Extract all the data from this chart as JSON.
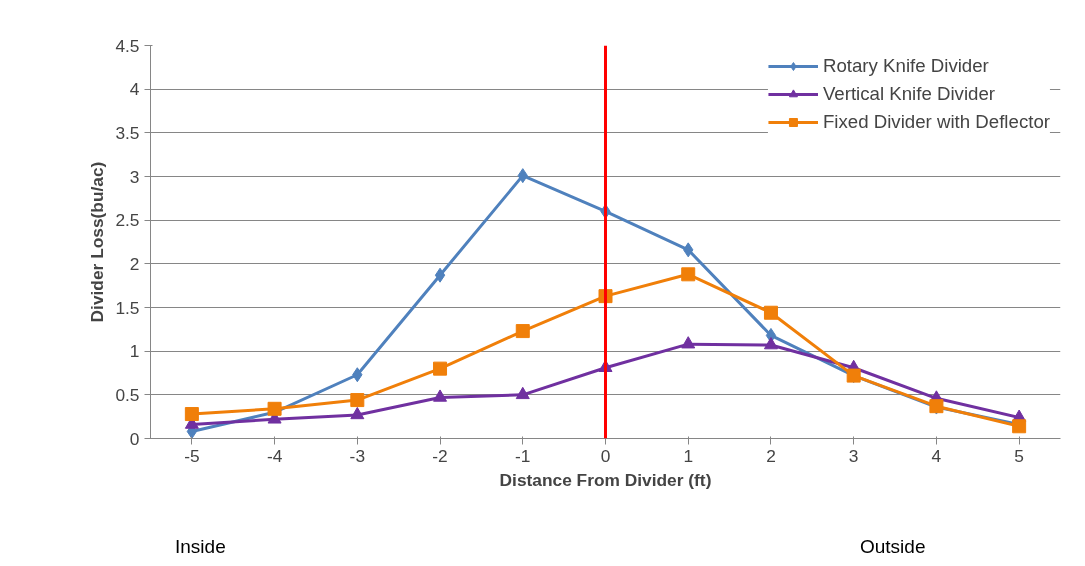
{
  "chart_data": {
    "type": "line",
    "xlabel": "Distance From Divider (ft)",
    "ylabel": "Divider Loss(bu/ac)",
    "x": [
      -5,
      -4,
      -3,
      -2,
      -1,
      0,
      1,
      2,
      3,
      4,
      5
    ],
    "series": [
      {
        "name": "Rotary Knife Divider",
        "color": "#4f81bd",
        "marker": "diamond",
        "values": [
          0.08,
          0.3,
          0.73,
          1.87,
          3.01,
          2.6,
          2.16,
          1.18,
          0.72,
          0.36,
          0.16
        ]
      },
      {
        "name": "Vertical Knife Divider",
        "color": "#7030a0",
        "marker": "triangle",
        "values": [
          0.16,
          0.22,
          0.27,
          0.47,
          0.5,
          0.81,
          1.08,
          1.07,
          0.81,
          0.46,
          0.24
        ]
      },
      {
        "name": "Fixed Divider with Deflector",
        "color": "#f07f09",
        "marker": "square",
        "values": [
          0.28,
          0.34,
          0.44,
          0.8,
          1.23,
          1.63,
          1.88,
          1.44,
          0.72,
          0.37,
          0.14
        ]
      }
    ],
    "xlim": [
      -5.5,
      5.5
    ],
    "xticks": [
      -5,
      -4,
      -3,
      -2,
      -1,
      0,
      1,
      2,
      3,
      4,
      5
    ],
    "ylim": [
      0,
      4.5
    ],
    "yticks": [
      0,
      0.5,
      1,
      1.5,
      2,
      2.5,
      3,
      3.5,
      4,
      4.5
    ],
    "ref_lines": [
      {
        "axis": "x",
        "value": 0,
        "color": "#ff0000"
      }
    ],
    "annotations": [
      "Inside",
      "Outside"
    ],
    "grid": "y",
    "legend": "top right"
  }
}
